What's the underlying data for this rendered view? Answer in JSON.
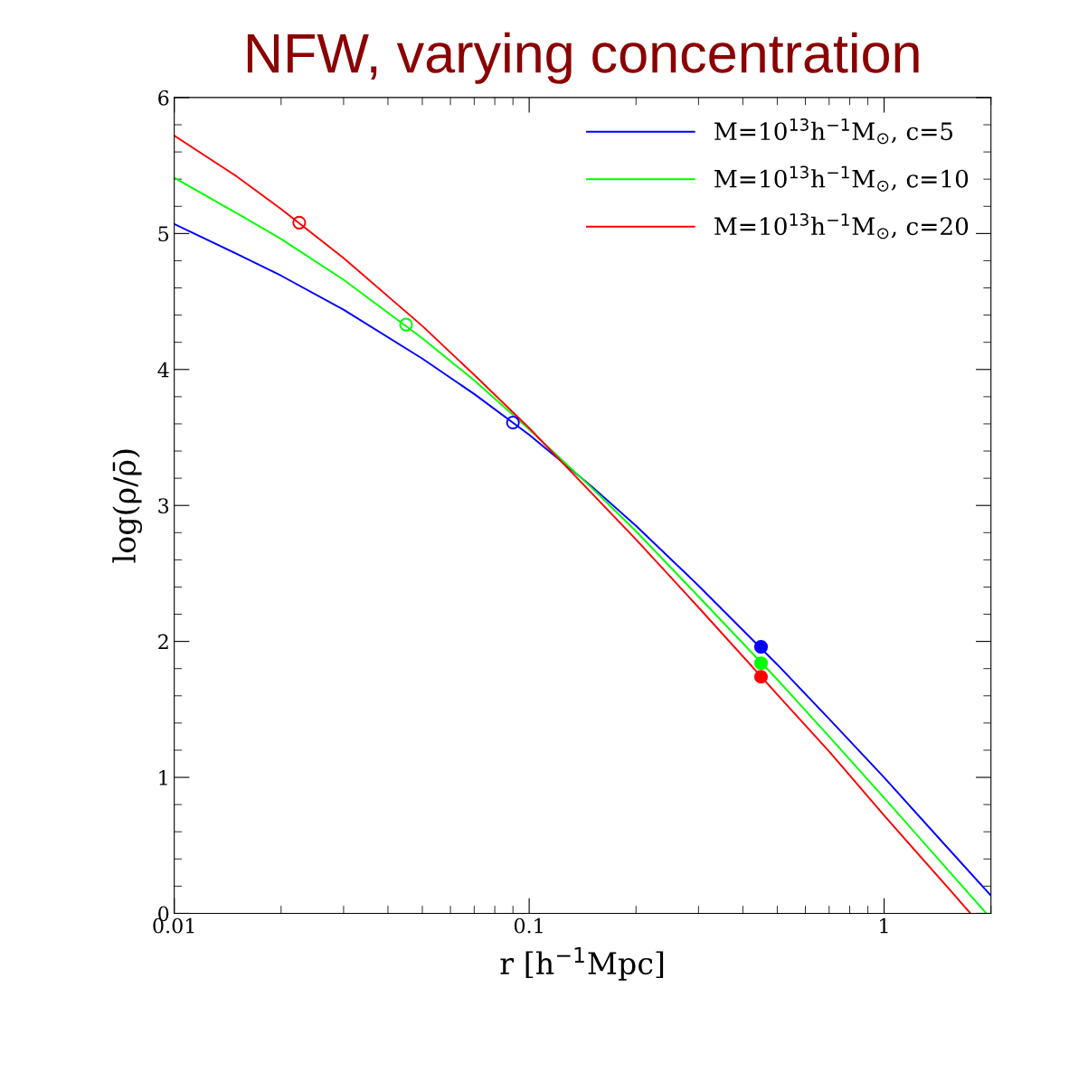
{
  "chart_data": {
    "type": "line",
    "title": "NFW, varying concentration",
    "xlabel": "r [h$^{−1}$Mpc]",
    "ylabel": "log(ρ/ρ̄)",
    "log": "x",
    "xlim": [
      0.01,
      2
    ],
    "xticks": [
      0.01,
      0.1,
      1
    ],
    "ylim": [
      0,
      6
    ],
    "yticks": [
      0,
      1,
      2,
      3,
      4,
      5,
      6
    ],
    "grid": false,
    "legend": "top right",
    "line_style": "solid",
    "series": [
      {
        "name": "M=10$^{13}$h$^{−1}$M$_{⊙}$, c=5",
        "color": "#0000ff",
        "x": [
          0.01,
          0.015,
          0.02,
          0.03,
          0.05,
          0.07,
          0.1,
          0.15,
          0.2,
          0.3,
          0.5,
          0.7,
          1.0,
          1.5,
          2.0
        ],
        "values": [
          5.07,
          4.85,
          4.69,
          4.44,
          4.08,
          3.82,
          3.52,
          3.14,
          2.85,
          2.41,
          1.83,
          1.43,
          1.0,
          0.49,
          0.13
        ]
      },
      {
        "name": "M=10$^{13}$h$^{−1}$M$_{⊙}$, c=10",
        "color": "#00ff00",
        "x": [
          0.01,
          0.015,
          0.02,
          0.03,
          0.05,
          0.07,
          0.1,
          0.15,
          0.2,
          0.3,
          0.5,
          0.7,
          1.0,
          1.5,
          1.94
        ],
        "values": [
          5.41,
          5.15,
          4.96,
          4.66,
          4.23,
          3.92,
          3.56,
          3.13,
          2.81,
          2.33,
          1.72,
          1.3,
          0.85,
          0.33,
          0.0
        ]
      },
      {
        "name": "M=10$^{13}$h$^{−1}$M$_{⊙}$, c=20",
        "color": "#ff0000",
        "x": [
          0.01,
          0.015,
          0.02,
          0.03,
          0.05,
          0.07,
          0.1,
          0.15,
          0.2,
          0.3,
          0.5,
          0.7,
          1.0,
          1.5,
          1.75
        ],
        "values": [
          5.72,
          5.42,
          5.18,
          4.82,
          4.32,
          3.96,
          3.57,
          3.09,
          2.75,
          2.25,
          1.61,
          1.19,
          0.72,
          0.2,
          0.0
        ]
      },
      {
        "type": "scatter",
        "marker": "circle",
        "color": "#0000ff",
        "x": [
          0.09
        ],
        "values": [
          3.61
        ]
      },
      {
        "type": "scatter",
        "marker": "circle",
        "color": "#00ff00",
        "x": [
          0.045
        ],
        "values": [
          4.33
        ]
      },
      {
        "type": "scatter",
        "marker": "circle",
        "color": "#ff0000",
        "x": [
          0.0225
        ],
        "values": [
          5.08
        ]
      },
      {
        "type": "scatter",
        "marker": "circle",
        "color": "#0000ff",
        "x": [
          0.45
        ],
        "values": [
          1.96
        ]
      },
      {
        "type": "scatter",
        "marker": "circle",
        "color": "#00ff00",
        "x": [
          0.45
        ],
        "values": [
          1.84
        ]
      },
      {
        "type": "scatter",
        "marker": "circle",
        "color": "#ff0000",
        "x": [
          0.45
        ],
        "values": [
          1.74
        ]
      }
    ]
  }
}
